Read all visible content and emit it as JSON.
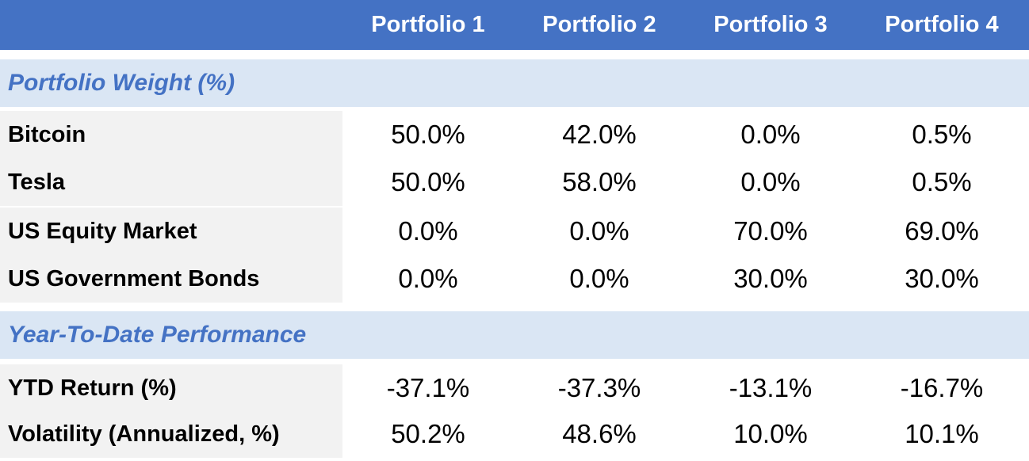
{
  "columns": [
    "Portfolio 1",
    "Portfolio 2",
    "Portfolio 3",
    "Portfolio 4"
  ],
  "sections": [
    {
      "title": "Portfolio Weight (%)",
      "rows": [
        {
          "label": "Bitcoin",
          "values": [
            "50.0%",
            "42.0%",
            "0.0%",
            "0.5%"
          ]
        },
        {
          "label": "Tesla",
          "values": [
            "50.0%",
            "58.0%",
            "0.0%",
            "0.5%"
          ]
        },
        {
          "label": "US Equity Market",
          "values": [
            "0.0%",
            "0.0%",
            "70.0%",
            "69.0%"
          ]
        },
        {
          "label": "US Government Bonds",
          "values": [
            "0.0%",
            "0.0%",
            "30.0%",
            "30.0%"
          ]
        }
      ]
    },
    {
      "title": "Year-To-Date Performance",
      "rows": [
        {
          "label": "YTD Return (%)",
          "values": [
            "-37.1%",
            "-37.3%",
            "-13.1%",
            "-16.7%"
          ]
        },
        {
          "label": "Volatility (Annualized, %)",
          "values": [
            "50.2%",
            "48.6%",
            "10.0%",
            "10.1%"
          ]
        }
      ]
    }
  ]
}
